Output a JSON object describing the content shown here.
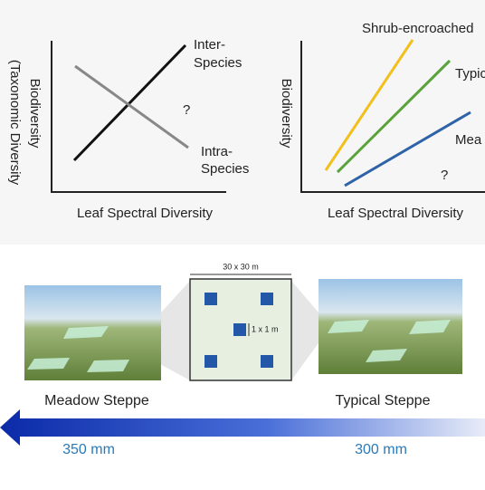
{
  "left_panel": {
    "y_label": "Biodiversity",
    "y_label_2": "(Taxonomic Diversity",
    "x_label": "Leaf Spectral Diversity",
    "inter_label": [
      "Inter-",
      "Species"
    ],
    "intra_label": [
      "Intra-",
      "Species"
    ],
    "question": "?"
  },
  "right_panel": {
    "y_label": "Biodiversity",
    "x_label": "Leaf Spectral Diversity",
    "lines": [
      "Shrub-encroached",
      "Typic",
      "Mea"
    ],
    "question": "?"
  },
  "plot_design": {
    "plot_size": "30 x 30 m",
    "quadrat_size": "1 x 1 m"
  },
  "sites": [
    "Meadow Steppe",
    "Typical Steppe"
  ],
  "precipitation": [
    "350 mm",
    "300 mm"
  ]
}
